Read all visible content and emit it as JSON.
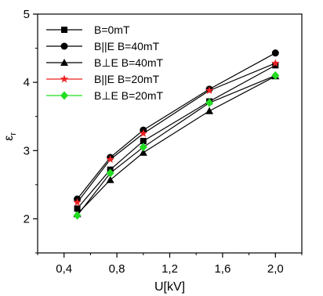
{
  "chart_data": {
    "type": "line",
    "xlabel": "U[kV]",
    "ylabel_main": "ε",
    "ylabel_sub": "r",
    "xlim": [
      0.2,
      2.2
    ],
    "ylim": [
      1.5,
      5.0
    ],
    "xticks": [
      0.4,
      0.8,
      1.2,
      1.6,
      2.0
    ],
    "xtick_labels": [
      "0,4",
      "0,8",
      "1,2",
      "1,6",
      "2,0"
    ],
    "yticks": [
      2,
      3,
      4,
      5
    ],
    "ytick_labels": [
      "2",
      "3",
      "4",
      "5"
    ],
    "grid": false,
    "legend_position": "top-left",
    "x": [
      0.5,
      0.75,
      1.0,
      1.5,
      2.0
    ],
    "series": [
      {
        "name": "B=0mT",
        "marker": "square",
        "color": "#000000",
        "values": [
          2.15,
          2.72,
          3.14,
          3.72,
          4.25
        ]
      },
      {
        "name": "B||E  B=40mT",
        "marker": "circle",
        "color": "#000000",
        "values": [
          2.29,
          2.9,
          3.3,
          3.9,
          4.43
        ]
      },
      {
        "name": "B⊥E  B=40mT",
        "marker": "triangle",
        "color": "#000000",
        "values": [
          2.07,
          2.57,
          2.97,
          3.58,
          4.09
        ]
      },
      {
        "name": "B||E  B=20mT",
        "marker": "star",
        "color": "#ee2222",
        "values": [
          2.24,
          2.87,
          3.25,
          3.88,
          4.28
        ]
      },
      {
        "name": "B⊥E  B=20mT",
        "marker": "diamond",
        "color": "#22dd22",
        "values": [
          2.05,
          2.67,
          3.05,
          3.7,
          4.1
        ]
      }
    ]
  }
}
